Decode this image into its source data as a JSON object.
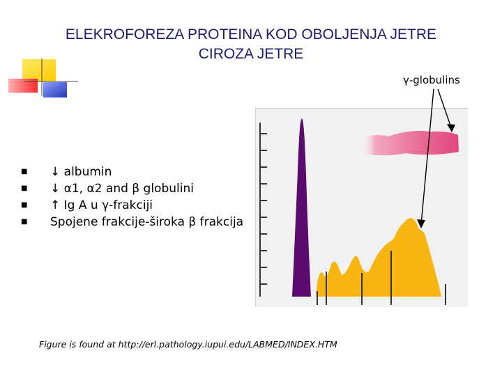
{
  "slide": {
    "title_line1": "ELEKROFOREZA PROTEINA KOD OBOLJENJA JETRE",
    "title_line2": "CIROZA JETRE",
    "callout_label": "γ-globulins",
    "bullets": [
      "↓ albumin",
      "↓ α1, α2 and β globulini",
      "↑ Ig A u γ-frakciji",
      "Spojene frakcije-široka β frakcija"
    ],
    "source_note": "Figure is found at http://erl.pathology.iupui.edu/LABMED/INDEX.HTM"
  },
  "colors": {
    "title": "#1a1a6e",
    "albumin_peak": "#5b0a6e",
    "globulin_area": "#f7b512",
    "gel_band": "#e86a96",
    "deco_yellow": "#ffd400",
    "deco_red": "#ff3b3b",
    "deco_blue": "#3a4fc9"
  }
}
